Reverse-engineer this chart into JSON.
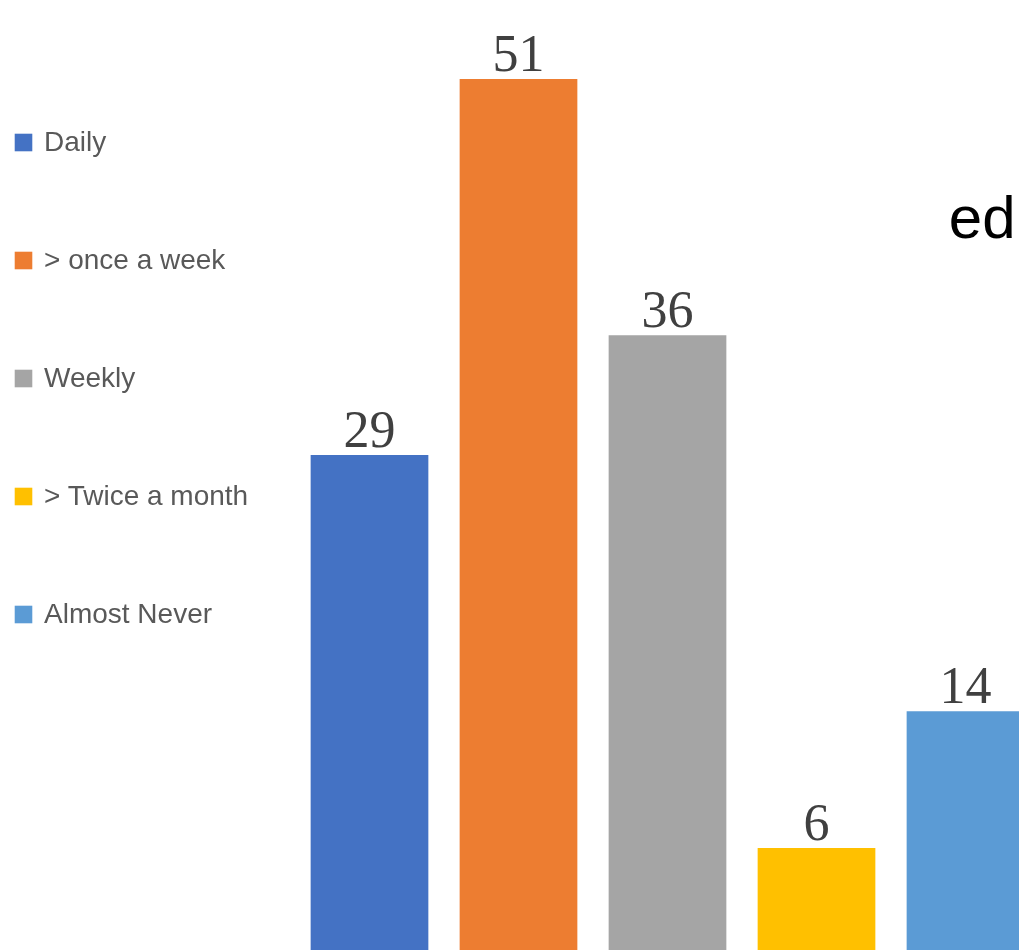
{
  "chart_data": {
    "type": "bar",
    "categories": [
      null
    ],
    "series": [
      {
        "name": "Daily",
        "color": "#4472c4",
        "values": [
          29
        ]
      },
      {
        "name": "> once a week",
        "color": "#ed7d31",
        "values": [
          51
        ]
      },
      {
        "name": "Weekly",
        "color": "#a5a5a5",
        "values": [
          36
        ]
      },
      {
        "name": "> Twice a month",
        "color": "#ffc000",
        "values": [
          6
        ]
      },
      {
        "name": "Almost Never",
        "color": "#5b9bd5",
        "values": [
          14
        ]
      }
    ],
    "data_labels": true,
    "legend": "left",
    "annotations": [
      "ed"
    ]
  }
}
